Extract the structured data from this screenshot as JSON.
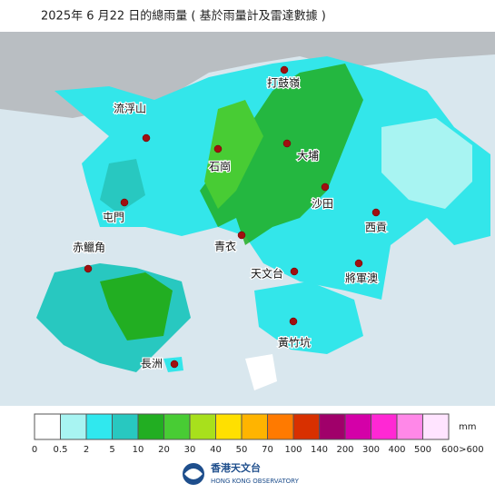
{
  "header": {
    "title": "2025年 6 月22 日的總雨量 ( 基於雨量計及雷達數據 )"
  },
  "places": [
    "打鼓嶺",
    "流浮山",
    "大埔",
    "石崗",
    "沙田",
    "屯門",
    "西貢",
    "青衣",
    "赤鱲角",
    "天文台",
    "將軍澳",
    "黃竹坑",
    "長洲"
  ],
  "legend": {
    "colors": [
      "#ffffff",
      "#a8f4f2",
      "#30e8ee",
      "#28c8c0",
      "#22ae22",
      "#48cc34",
      "#a8e01c",
      "#ffe000",
      "#ffb400",
      "#ff7a00",
      "#d83000",
      "#a0006a",
      "#d400a8",
      "#ff28d4",
      "#ff88e8",
      "#ffe4ff"
    ],
    "labels": [
      "0",
      "0.5",
      "2",
      "5",
      "10",
      "20",
      "30",
      "40",
      "50",
      "70",
      "100",
      "140",
      "200",
      "300",
      "400",
      "500",
      "600>600"
    ],
    "unit": "mm"
  },
  "footer": {
    "name_zh": "香港天文台",
    "name_en": "HONG KONG OBSERVATORY"
  }
}
